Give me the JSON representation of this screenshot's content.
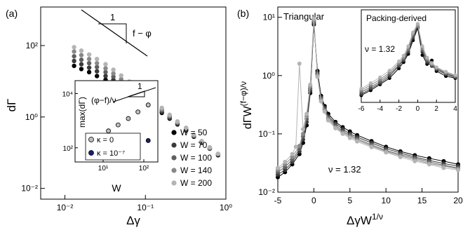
{
  "chart_data": [
    {
      "panel": "(a)",
      "type": "scatter",
      "xlabel": "Δγ",
      "ylabel": "dΓ",
      "xscale": "log",
      "yscale": "log",
      "xlim": [
        0.005,
        1
      ],
      "ylim": [
        0.005,
        1200
      ],
      "x_ticks": [
        "10⁻²",
        "10⁻¹",
        "10⁰"
      ],
      "y_ticks": [
        "10⁻²",
        "10⁰",
        "10²"
      ],
      "x_tick_values": [
        0.01,
        0.1,
        1
      ],
      "y_tick_values": [
        0.01,
        1,
        100
      ],
      "legend_position": "bottom-right",
      "slope_annotation": {
        "label": "f − φ",
        "triangle_label": "1"
      },
      "series": [
        {
          "name": "W = 50",
          "color": "#000000",
          "x": [
            0.013,
            0.016,
            0.02,
            0.025,
            0.032,
            0.04,
            0.05,
            0.063,
            0.08,
            0.1,
            0.13,
            0.16,
            0.2,
            0.25,
            0.32,
            0.4,
            0.5,
            0.63,
            0.8
          ],
          "y": [
            27,
            22,
            18,
            14,
            11,
            8.5,
            6.5,
            4.8,
            3.6,
            2.6,
            1.8,
            1.3,
            0.9,
            0.62,
            0.42,
            0.28,
            0.19,
            0.13,
            0.085
          ]
        },
        {
          "name": "W = 70",
          "color": "#3a3a3a",
          "x": [
            0.013,
            0.016,
            0.02,
            0.025,
            0.032,
            0.04,
            0.05,
            0.063,
            0.08,
            0.1,
            0.13,
            0.16,
            0.2,
            0.25,
            0.32,
            0.4,
            0.5,
            0.63,
            0.8
          ],
          "y": [
            37,
            30,
            24,
            19,
            14,
            11,
            8,
            5.8,
            4.2,
            3,
            2.1,
            1.4,
            0.95,
            0.65,
            0.44,
            0.29,
            0.2,
            0.13,
            0.09
          ]
        },
        {
          "name": "W = 100",
          "color": "#5f5f5f",
          "x": [
            0.013,
            0.016,
            0.02,
            0.025,
            0.032,
            0.04,
            0.05,
            0.063,
            0.08,
            0.1,
            0.13,
            0.16,
            0.2,
            0.25,
            0.32,
            0.4,
            0.5,
            0.63,
            0.8
          ],
          "y": [
            50,
            40,
            32,
            25,
            18,
            13.5,
            9.5,
            6.8,
            4.8,
            3.3,
            2.3,
            1.55,
            1.02,
            0.68,
            0.46,
            0.3,
            0.2,
            0.135,
            0.09
          ]
        },
        {
          "name": "W = 140",
          "color": "#888888",
          "x": [
            0.013,
            0.016,
            0.02,
            0.025,
            0.032,
            0.04,
            0.05,
            0.063,
            0.08,
            0.1,
            0.13,
            0.16,
            0.2,
            0.25,
            0.32,
            0.4,
            0.5,
            0.63,
            0.8
          ],
          "y": [
            68,
            54,
            42,
            32,
            23,
            16.5,
            11.5,
            8,
            5.4,
            3.7,
            2.5,
            1.65,
            1.08,
            0.72,
            0.48,
            0.31,
            0.21,
            0.14,
            0.092
          ]
        },
        {
          "name": "W = 200",
          "color": "#b4b4b4",
          "x": [
            0.013,
            0.016,
            0.02,
            0.025,
            0.032,
            0.04,
            0.05,
            0.063,
            0.08,
            0.1,
            0.13,
            0.16,
            0.2,
            0.25,
            0.32,
            0.4,
            0.5,
            0.63,
            0.8
          ],
          "y": [
            90,
            72,
            56,
            42,
            30,
            21,
            14.5,
            9.8,
            6.5,
            4.3,
            2.8,
            1.8,
            1.15,
            0.75,
            0.5,
            0.32,
            0.21,
            0.14,
            0.093
          ]
        }
      ],
      "inset": {
        "xlabel": "W",
        "ylabel": "max(dΓ)",
        "xscale": "log",
        "yscale": "log",
        "xlim": [
          35,
          280
        ],
        "ylim": [
          30,
          30000
        ],
        "x_ticks": [
          "10¹",
          "10²"
        ],
        "y_ticks": [
          "10²",
          "10⁴"
        ],
        "x_tick_values": [
          10,
          100
        ],
        "y_tick_values": [
          100,
          10000
        ],
        "slope_annotation": {
          "label": "(φ−f)/ν",
          "triangle_label": "1"
        },
        "series": [
          {
            "name": "κ = 0",
            "marker": "open-circle",
            "x": [
              50,
              70,
              100,
              140,
              200
            ],
            "y": [
              420,
              700,
              1200,
              2100,
              3800
            ]
          },
          {
            "name": "κ = 10⁻⁷",
            "marker": "filled-navy",
            "x": [
              50,
              70,
              100,
              140,
              200
            ],
            "y": [
              75,
              95,
              120,
              145,
              185
            ]
          }
        ]
      }
    },
    {
      "panel": "(b)",
      "type": "line",
      "xlabel": "ΔγW^(1/ν)",
      "ylabel": "dΓW^((f−φ)/ν)",
      "yscale": "log",
      "xlim": [
        -5,
        20
      ],
      "ylim": [
        0.01,
        15
      ],
      "x_ticks": [
        "-5",
        "0",
        "5",
        "10",
        "15",
        "20"
      ],
      "y_ticks": [
        "10⁻²",
        "10⁻¹",
        "10⁰",
        "10¹"
      ],
      "x_tick_values": [
        -5,
        0,
        5,
        10,
        15,
        20
      ],
      "y_tick_values": [
        0.01,
        0.1,
        1,
        10
      ],
      "annotations": [
        "Triangular",
        "ν = 1.32"
      ],
      "series": [
        {
          "name": "W = 50",
          "color": "#000000",
          "x": [
            -5,
            -4,
            -3,
            -2,
            -1.5,
            -1,
            -0.5,
            0,
            0.5,
            1,
            1.5,
            2,
            3,
            4,
            5,
            6,
            8,
            10,
            12,
            14,
            16,
            18,
            20
          ],
          "y": [
            0.018,
            0.022,
            0.03,
            0.045,
            0.07,
            0.14,
            0.5,
            7.5,
            1.2,
            0.45,
            0.3,
            0.22,
            0.16,
            0.13,
            0.11,
            0.095,
            0.075,
            0.06,
            0.05,
            0.043,
            0.038,
            0.034,
            0.03
          ]
        },
        {
          "name": "W = 70",
          "color": "#3a3a3a",
          "x": [
            -5,
            -4,
            -3,
            -2,
            -1.5,
            -1,
            -0.5,
            0,
            0.5,
            1,
            1.5,
            2,
            3,
            4,
            5,
            6,
            8,
            10,
            12,
            14,
            16,
            18,
            20
          ],
          "y": [
            0.02,
            0.024,
            0.033,
            0.05,
            0.08,
            0.16,
            0.55,
            8,
            1.1,
            0.42,
            0.28,
            0.2,
            0.15,
            0.12,
            0.1,
            0.088,
            0.07,
            0.056,
            0.047,
            0.04,
            0.035,
            0.031,
            0.028
          ]
        },
        {
          "name": "W = 100",
          "color": "#5f5f5f",
          "x": [
            -5,
            -4,
            -3,
            -2,
            -1.5,
            -1,
            -0.5,
            0,
            0.5,
            1,
            1.5,
            2,
            3,
            4,
            5,
            6,
            8,
            10,
            12,
            14,
            16,
            18,
            20
          ],
          "y": [
            0.022,
            0.027,
            0.036,
            0.055,
            0.09,
            0.18,
            0.6,
            8.5,
            1.05,
            0.4,
            0.26,
            0.19,
            0.14,
            0.11,
            0.095,
            0.082,
            0.065,
            0.052,
            0.044,
            0.038,
            0.033,
            0.029,
            0.026
          ]
        },
        {
          "name": "W = 140",
          "color": "#888888",
          "x": [
            -5,
            -4,
            -3,
            -2,
            -1.5,
            -1,
            -0.5,
            0,
            0.5,
            1,
            1.5,
            2,
            3,
            4,
            5,
            6,
            8,
            10,
            12,
            14,
            16,
            18,
            20
          ],
          "y": [
            0.024,
            0.03,
            0.04,
            0.062,
            0.1,
            0.2,
            0.65,
            9,
            1,
            0.38,
            0.25,
            0.18,
            0.13,
            0.105,
            0.09,
            0.078,
            0.062,
            0.05,
            0.042,
            0.036,
            0.031,
            0.028,
            0.025
          ]
        },
        {
          "name": "W = 200",
          "color": "#b4b4b4",
          "x": [
            -5,
            -4,
            -3,
            -2.5,
            -2,
            -1.5,
            -1,
            -0.5,
            0,
            0.5,
            1,
            1.5,
            2,
            3,
            4,
            5,
            6,
            8,
            10,
            12,
            14,
            16,
            18,
            20
          ],
          "y": [
            0.026,
            0.033,
            0.045,
            0.06,
            1.6,
            0.12,
            0.22,
            0.7,
            9.5,
            0.95,
            0.36,
            0.24,
            0.17,
            0.125,
            0.1,
            0.085,
            0.074,
            0.059,
            0.048,
            0.04,
            0.034,
            0.03,
            0.026,
            0.024
          ]
        }
      ],
      "inset": {
        "annotations": [
          "Packing-derived",
          "ν = 1.32"
        ],
        "yscale": "log",
        "xlim": [
          -6,
          4
        ],
        "ylim": [
          0.1,
          20
        ],
        "x_ticks": [
          "-6",
          "-4",
          "-2",
          "0",
          "2",
          "4"
        ],
        "x_tick_values": [
          -6,
          -4,
          -2,
          0,
          2,
          4
        ],
        "series": [
          {
            "name": "W = 50",
            "color": "#000000",
            "x": [
              -6,
              -5,
              -4,
              -3,
              -2,
              -1.5,
              -1,
              -0.5,
              0,
              0.5,
              1,
              1.5,
              2,
              3,
              4
            ],
            "y": [
              0.15,
              0.2,
              0.28,
              0.4,
              0.7,
              1,
              1.6,
              3.5,
              7,
              1.5,
              0.9,
              1.1,
              0.6,
              0.45,
              0.4
            ]
          },
          {
            "name": "W = 70",
            "color": "#3a3a3a",
            "x": [
              -6,
              -5,
              -4,
              -3,
              -2,
              -1.5,
              -1,
              -0.5,
              0,
              0.5,
              1,
              1.5,
              2,
              3,
              4
            ],
            "y": [
              0.16,
              0.22,
              0.3,
              0.45,
              0.8,
              1.1,
              1.8,
              4,
              7.5,
              1.8,
              1,
              0.8,
              0.65,
              0.5,
              0.42
            ]
          },
          {
            "name": "W = 100",
            "color": "#5f5f5f",
            "x": [
              -6,
              -5,
              -4,
              -3,
              -2,
              -1.5,
              -1,
              -0.5,
              0,
              0.5,
              1,
              1.5,
              2,
              3,
              4
            ],
            "y": [
              0.18,
              0.24,
              0.33,
              0.5,
              0.85,
              1.2,
              2,
              4.5,
              8,
              2,
              1.1,
              0.85,
              0.7,
              0.52,
              0.44
            ]
          },
          {
            "name": "W = 140",
            "color": "#888888",
            "x": [
              -6,
              -5,
              -4,
              -3,
              -2,
              -1.5,
              -1,
              -0.5,
              0,
              0.5,
              1,
              1.5,
              2,
              3,
              4
            ],
            "y": [
              0.2,
              0.27,
              0.37,
              0.55,
              0.95,
              1.3,
              2.2,
              5,
              8.5,
              2.2,
              1.2,
              0.9,
              0.72,
              0.55,
              0.46
            ]
          },
          {
            "name": "W = 200",
            "color": "#b4b4b4",
            "x": [
              -6,
              -5,
              -4,
              -3,
              -2,
              -1.5,
              -1,
              -0.5,
              0,
              0.5,
              1,
              1.5,
              2,
              3,
              4
            ],
            "y": [
              0.22,
              0.3,
              0.42,
              0.62,
              1.05,
              1.45,
              2.5,
              5.5,
              9,
              2.5,
              1.3,
              0.95,
              0.75,
              0.58,
              0.48
            ]
          }
        ]
      }
    }
  ]
}
